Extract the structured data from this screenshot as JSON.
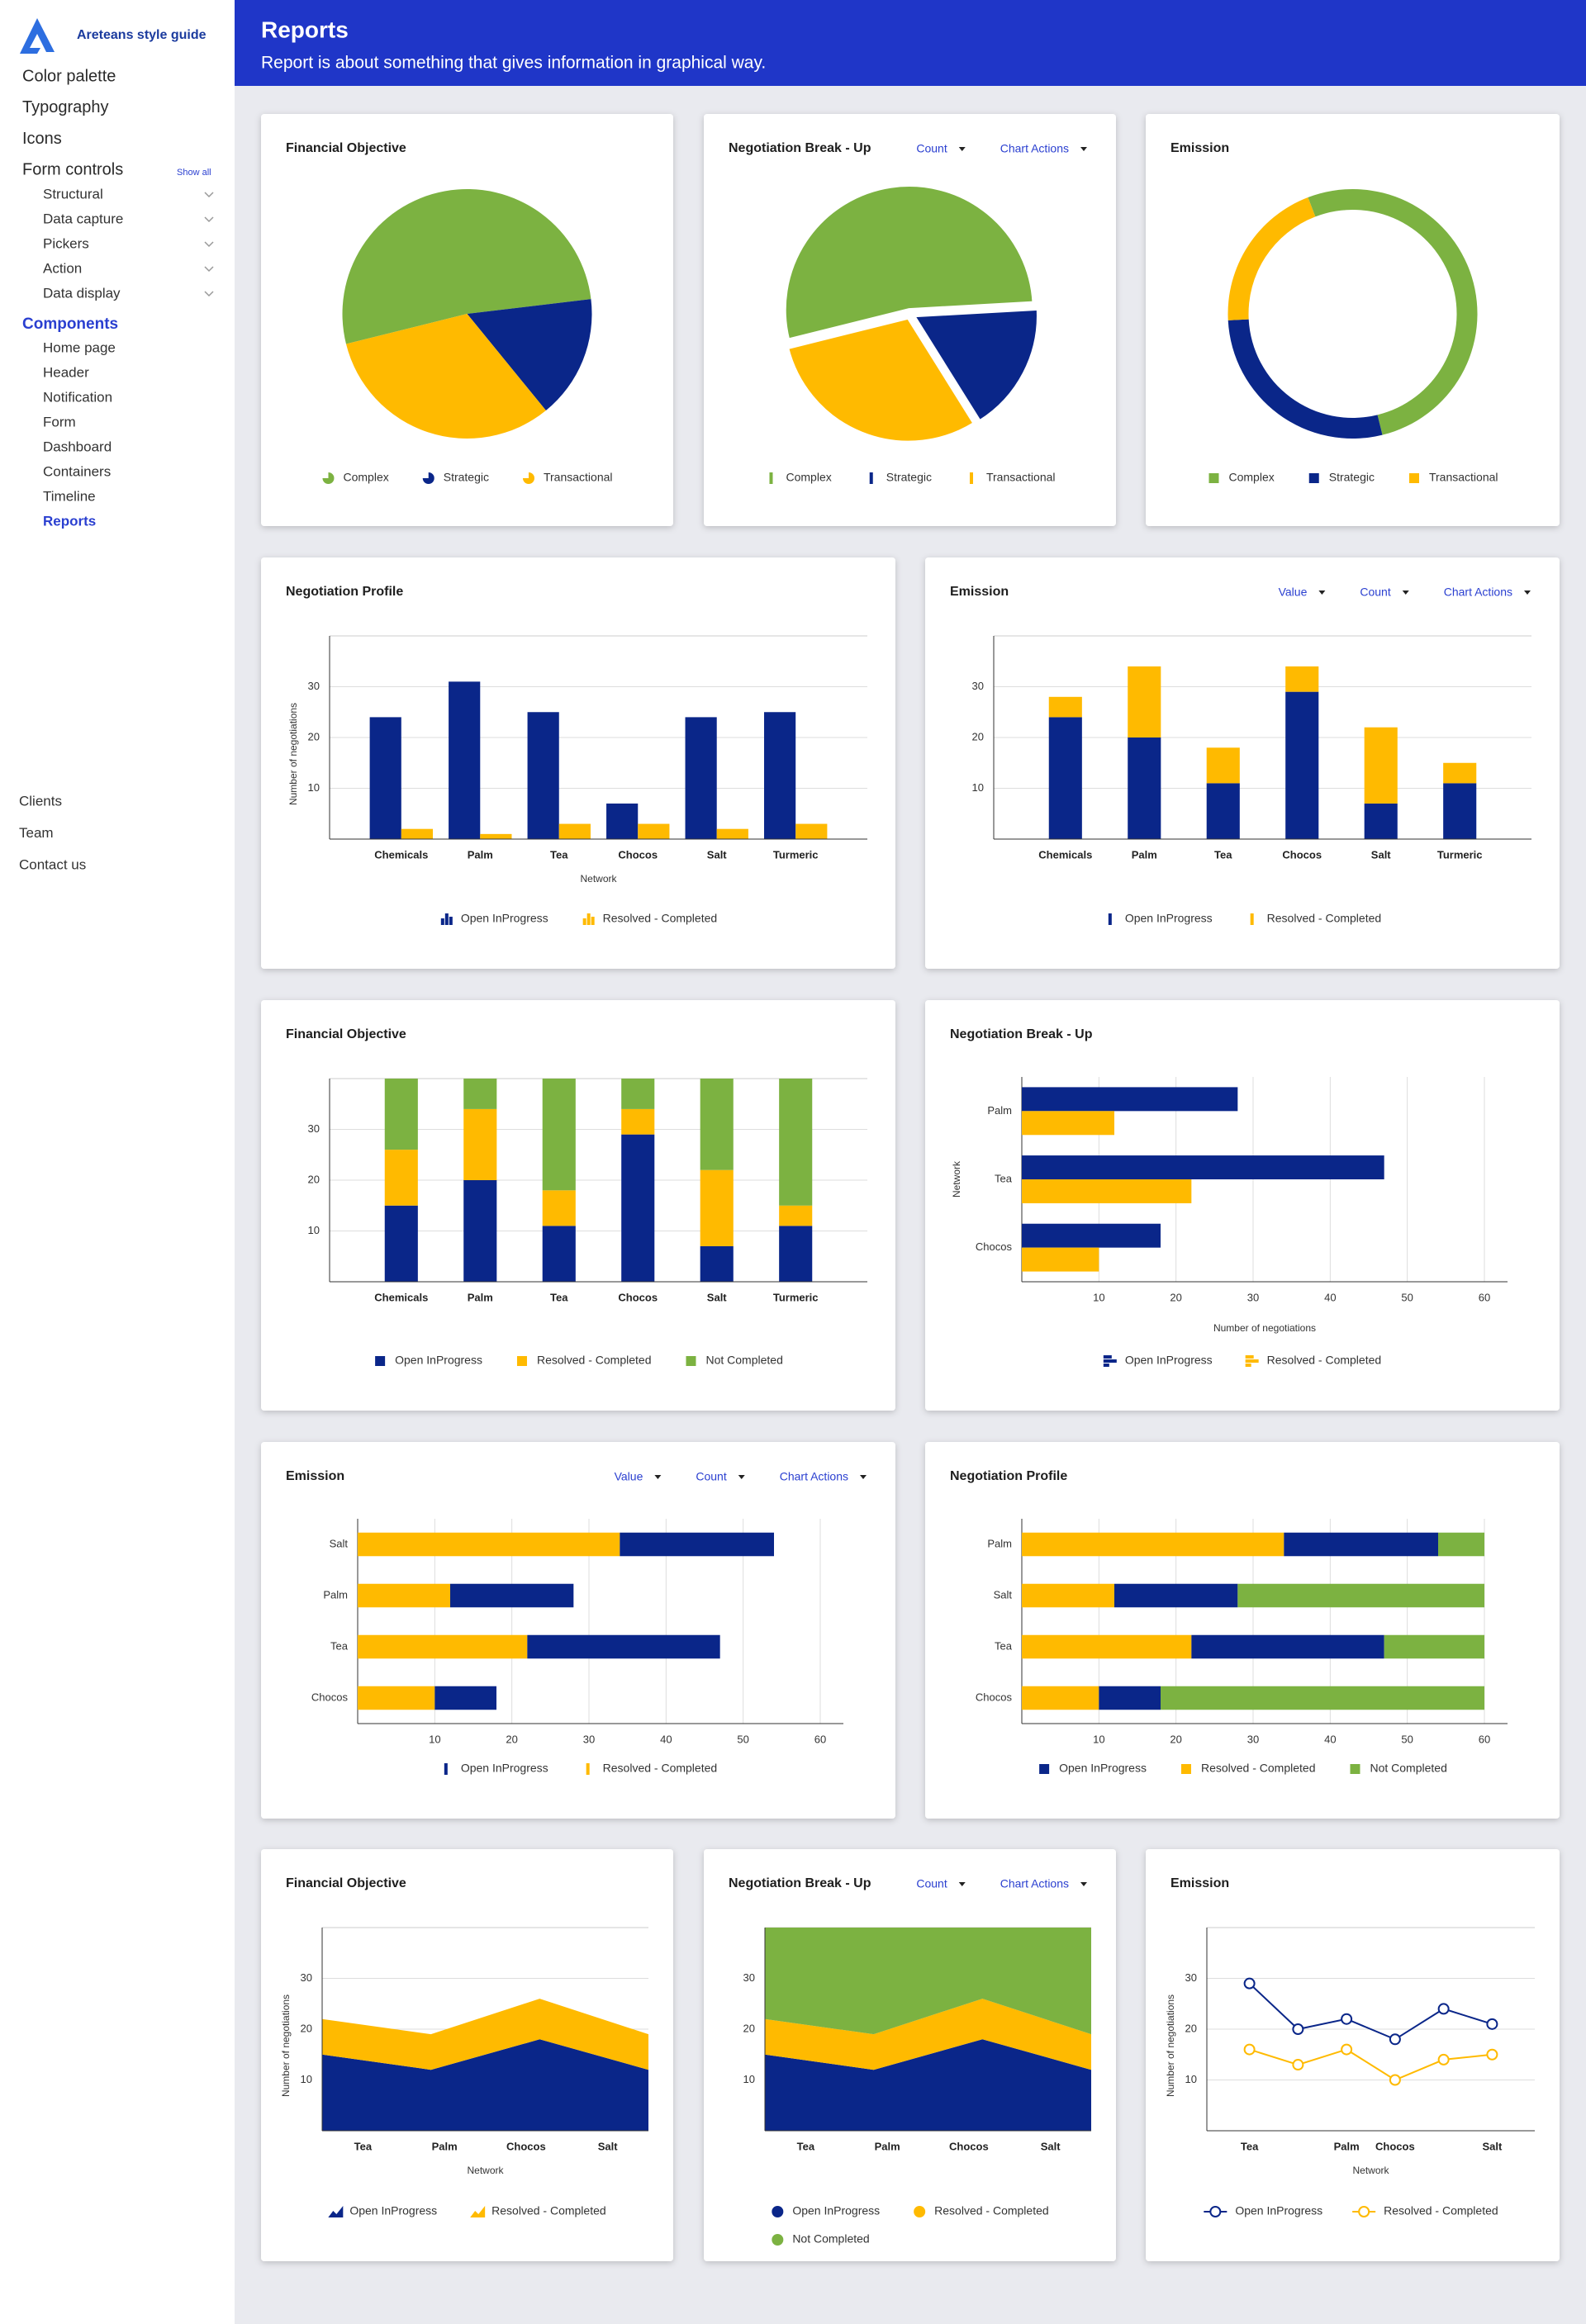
{
  "header": {
    "title": "Reports",
    "subtitle": "Report is about something that gives information in graphical way."
  },
  "sidebar": {
    "brand": "Areteans style guide",
    "items": [
      "Color palette",
      "Typography",
      "Icons",
      "Form controls"
    ],
    "show_all": "Show all",
    "form_controls": [
      "Structural",
      "Data capture",
      "Pickers",
      "Action",
      "Data display"
    ],
    "components": "Components",
    "component_items": [
      "Home page",
      "Header",
      "Notification",
      "Form",
      "Dashboard",
      "Containers",
      "Timeline",
      "Reports"
    ],
    "footer": [
      "Clients",
      "Team",
      "Contact us"
    ]
  },
  "chart_data": [
    {
      "type": "pie",
      "title": "Financial Objective",
      "legend_marker": "pie",
      "categories": [
        "Complex",
        "Strategic",
        "Transactional"
      ],
      "values": [
        52,
        16,
        32
      ],
      "colors": [
        "#7cb241",
        "#0a2689",
        "#ffba00"
      ]
    },
    {
      "type": "pie",
      "exploded": true,
      "title": "Negotiation Break - Up",
      "controls": [
        "Count",
        "Chart Actions"
      ],
      "legend_marker": "bar",
      "categories": [
        "Complex",
        "Strategic",
        "Transactional"
      ],
      "values": [
        53,
        17,
        30
      ],
      "colors": [
        "#7cb241",
        "#0a2689",
        "#ffba00"
      ]
    },
    {
      "type": "donut",
      "title": "Emission",
      "legend_marker": "square",
      "categories": [
        "Complex",
        "Strategic",
        "Transactional"
      ],
      "values": [
        52,
        28,
        20
      ],
      "colors": [
        "#7cb241",
        "#0a2689",
        "#ffba00"
      ]
    },
    {
      "type": "bar",
      "title": "Negotiation Profile",
      "x_label": "Network",
      "y_label": "Number of negotiations",
      "legend_marker": "column",
      "categories": [
        "Chemicals",
        "Palm",
        "Tea",
        "Chocos",
        "Salt",
        "Turmeric"
      ],
      "series": [
        {
          "name": "Open InProgress",
          "color": "#0a2689",
          "values": [
            24,
            31,
            25,
            7,
            24,
            25
          ]
        },
        {
          "name": "Resolved - Completed",
          "color": "#ffba00",
          "values": [
            2,
            1,
            3,
            3,
            2,
            3
          ]
        }
      ],
      "ylim": [
        0,
        40
      ],
      "yticks": [
        10,
        20,
        30
      ],
      "grid": true
    },
    {
      "type": "stacked-bar",
      "title": "Emission",
      "controls": [
        "Value",
        "Count",
        "Chart Actions"
      ],
      "legend_marker": "bar",
      "categories": [
        "Chemicals",
        "Palm",
        "Tea",
        "Chocos",
        "Salt",
        "Turmeric"
      ],
      "series": [
        {
          "name": "Open InProgress",
          "color": "#0a2689",
          "values": [
            24,
            20,
            11,
            29,
            7,
            11
          ]
        },
        {
          "name": "Resolved - Completed",
          "color": "#ffba00",
          "values": [
            4,
            14,
            7,
            5,
            15,
            4
          ]
        }
      ],
      "ylim": [
        0,
        40
      ],
      "yticks": [
        10,
        20,
        30
      ],
      "grid": true
    },
    {
      "type": "stacked-bar",
      "title": "Financial Objective",
      "legend_marker": "square",
      "categories": [
        "Chemicals",
        "Palm",
        "Tea",
        "Chocos",
        "Salt",
        "Turmeric"
      ],
      "series": [
        {
          "name": "Open InProgress",
          "color": "#0a2689",
          "values": [
            15,
            20,
            11,
            29,
            7,
            11
          ]
        },
        {
          "name": "Resolved - Completed",
          "color": "#ffba00",
          "values": [
            11,
            14,
            7,
            5,
            15,
            4
          ]
        },
        {
          "name": "Not Completed",
          "color": "#7cb241",
          "values": [
            14,
            6,
            22,
            6,
            18,
            25
          ]
        }
      ],
      "ylim": [
        0,
        40
      ],
      "yticks": [
        10,
        20,
        30
      ],
      "grid": true
    },
    {
      "type": "hbar",
      "title": "Negotiation Break - Up",
      "x_label": "Number of negotiations",
      "y_label": "Network",
      "legend_marker": "hbar",
      "categories": [
        "Palm",
        "Tea",
        "Chocos"
      ],
      "series": [
        {
          "name": "Open InProgress",
          "color": "#0a2689",
          "values": [
            28,
            47,
            18
          ]
        },
        {
          "name": "Resolved - Completed",
          "color": "#ffba00",
          "values": [
            12,
            22,
            10
          ]
        }
      ],
      "xlim": [
        0,
        63
      ],
      "xticks": [
        10,
        20,
        30,
        40,
        50,
        60
      ],
      "grid": true
    },
    {
      "type": "stacked-hbar",
      "title": "Emission",
      "controls": [
        "Value",
        "Count",
        "Chart Actions"
      ],
      "legend_marker": "bar",
      "categories": [
        "Salt",
        "Palm",
        "Tea",
        "Chocos"
      ],
      "series": [
        {
          "name": "Open InProgress",
          "color": "#0a2689",
          "values": [
            20,
            16,
            25,
            8
          ]
        },
        {
          "name": "Resolved - Completed",
          "color": "#ffba00",
          "values": [
            34,
            12,
            22,
            10
          ]
        }
      ],
      "xlim": [
        0,
        63
      ],
      "xticks": [
        10,
        20,
        30,
        40,
        50,
        60
      ],
      "grid": true
    },
    {
      "type": "stacked-hbar",
      "title": "Negotiation Profile",
      "legend_marker": "square",
      "categories": [
        "Palm",
        "Salt",
        "Tea",
        "Chocos"
      ],
      "series": [
        {
          "name": "Open InProgress",
          "color": "#0a2689",
          "values": [
            20,
            16,
            25,
            8
          ]
        },
        {
          "name": "Resolved - Completed",
          "color": "#ffba00",
          "values": [
            34,
            12,
            22,
            10
          ]
        },
        {
          "name": "Not Completed",
          "color": "#7cb241",
          "values": [
            6,
            32,
            13,
            42
          ]
        }
      ],
      "xlim": [
        0,
        63
      ],
      "xticks": [
        10,
        20,
        30,
        40,
        50,
        60
      ],
      "grid": true
    },
    {
      "type": "stacked-area",
      "title": "Financial Objective",
      "x_label": "Network",
      "y_label": "Number of negotiations",
      "legend_marker": "area",
      "categories": [
        "Tea",
        "Palm",
        "Chocos",
        "Salt"
      ],
      "series": [
        {
          "name": "Open InProgress",
          "color": "#0a2689",
          "values": [
            15,
            12,
            18,
            12
          ]
        },
        {
          "name": "Resolved - Completed",
          "color": "#ffba00",
          "values": [
            7,
            7,
            8,
            7
          ]
        }
      ],
      "ylim": [
        0,
        40
      ],
      "yticks": [
        10,
        20,
        30
      ],
      "grid": true
    },
    {
      "type": "stacked-area",
      "title": "Negotiation Break - Up",
      "controls": [
        "Count",
        "Chart Actions"
      ],
      "legend_marker": "circle",
      "categories": [
        "Tea",
        "Palm",
        "Chocos",
        "Salt"
      ],
      "series": [
        {
          "name": "Open InProgress",
          "color": "#0a2689",
          "values": [
            15,
            12,
            18,
            12
          ]
        },
        {
          "name": "Resolved - Completed",
          "color": "#ffba00",
          "values": [
            7,
            7,
            8,
            7
          ]
        },
        {
          "name": "Not Completed",
          "color": "#7cb241",
          "values": [
            18,
            21,
            14,
            21
          ]
        }
      ],
      "ylim": [
        0,
        40
      ],
      "yticks": [
        10,
        20,
        30
      ],
      "grid": true
    },
    {
      "type": "line",
      "title": "Emission",
      "x_label": "Network",
      "y_label": "Number of negotiations",
      "legend_marker": "line",
      "categories": [
        "Tea",
        null,
        "Palm",
        "Chocos",
        null,
        "Salt"
      ],
      "series": [
        {
          "name": "Open InProgress",
          "color": "#0a2689",
          "values": [
            29,
            20,
            22,
            18,
            24,
            21
          ]
        },
        {
          "name": "Resolved - Completed",
          "color": "#ffba00",
          "values": [
            16,
            13,
            16,
            10,
            14,
            15
          ]
        }
      ],
      "ylim": [
        0,
        40
      ],
      "yticks": [
        10,
        20,
        30
      ],
      "grid": true
    }
  ]
}
